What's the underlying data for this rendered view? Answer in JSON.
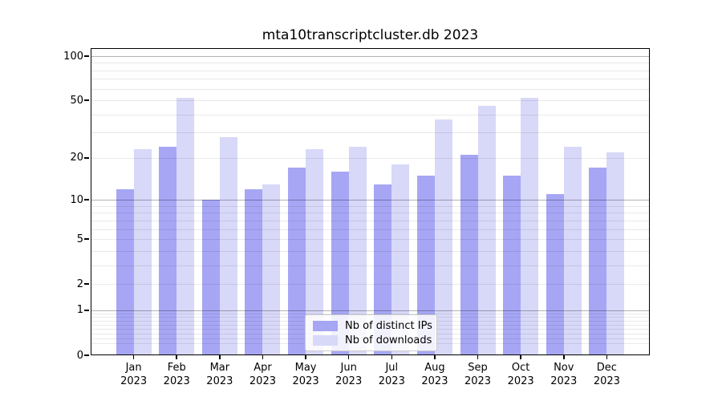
{
  "chart_data": {
    "type": "bar",
    "title": "mta10transcriptcluster.db 2023",
    "categories": [
      "Jan 2023",
      "Feb 2023",
      "Mar 2023",
      "Apr 2023",
      "May 2023",
      "Jun 2023",
      "Jul 2023",
      "Aug 2023",
      "Sep 2023",
      "Oct 2023",
      "Nov 2023",
      "Dec 2023"
    ],
    "series": [
      {
        "name": "Nb of distinct IPs",
        "color": "#a6a6f5",
        "values": [
          12,
          24,
          10,
          12,
          17,
          16,
          13,
          15,
          21,
          15,
          11,
          17
        ]
      },
      {
        "name": "Nb of downloads",
        "color": "#d8d8f8",
        "values": [
          23,
          52,
          28,
          13,
          23,
          24,
          18,
          37,
          46,
          52,
          24,
          22
        ]
      }
    ],
    "xlabel": "",
    "ylabel": "",
    "yscale": "log1p",
    "yticks": [
      0,
      1,
      2,
      5,
      10,
      20,
      50,
      100
    ],
    "ylim": [
      0,
      115
    ],
    "grid": true,
    "legend_position": "lower center",
    "colors": {
      "grid_major": "#b3b3b3",
      "grid_minor": "#e9e9e9",
      "axis": "#000000",
      "background": "#ffffff"
    }
  }
}
